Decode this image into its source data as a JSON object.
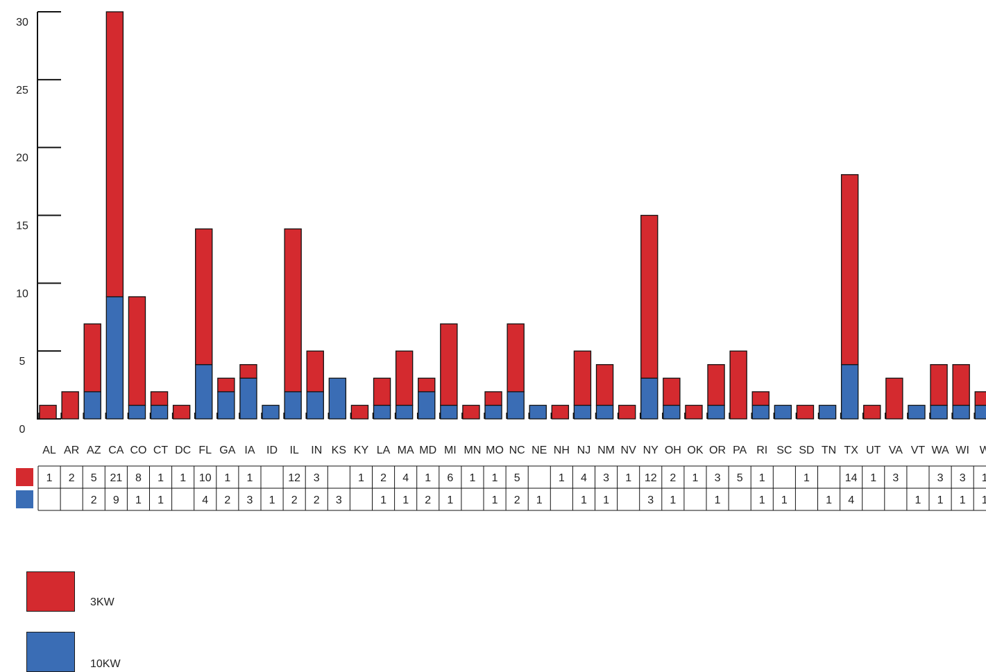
{
  "colors": {
    "red": "#d42a2f",
    "blue": "#3a6db5",
    "axis": "#111111"
  },
  "chart_data": {
    "type": "bar",
    "stacked": true,
    "categories": [
      "AL",
      "AR",
      "AZ",
      "CA",
      "CO",
      "CT",
      "DC",
      "FL",
      "GA",
      "IA",
      "ID",
      "IL",
      "IN",
      "KS",
      "KY",
      "LA",
      "MA",
      "MD",
      "MI",
      "MN",
      "MO",
      "NC",
      "NE",
      "NH",
      "NJ",
      "NM",
      "NV",
      "NY",
      "OH",
      "OK",
      "OR",
      "PA",
      "RI",
      "SC",
      "SD",
      "TN",
      "TX",
      "UT",
      "VA",
      "VT",
      "WA",
      "WI",
      "W"
    ],
    "series": [
      {
        "name": "10KW",
        "color": "#3a6db5",
        "values": [
          null,
          null,
          2,
          9,
          1,
          1,
          null,
          4,
          2,
          3,
          1,
          2,
          2,
          3,
          null,
          1,
          1,
          2,
          1,
          null,
          1,
          2,
          1,
          null,
          1,
          1,
          null,
          3,
          1,
          null,
          1,
          null,
          1,
          1,
          null,
          1,
          4,
          null,
          null,
          1,
          1,
          1,
          1
        ]
      },
      {
        "name": "3KW",
        "color": "#d42a2f",
        "values": [
          1,
          2,
          5,
          21,
          8,
          1,
          1,
          10,
          1,
          1,
          null,
          12,
          3,
          null,
          1,
          2,
          4,
          1,
          6,
          1,
          1,
          5,
          null,
          1,
          4,
          3,
          1,
          12,
          2,
          1,
          3,
          5,
          1,
          null,
          1,
          null,
          14,
          1,
          3,
          null,
          3,
          3,
          1
        ]
      }
    ],
    "ylim": [
      0,
      30
    ],
    "yticks": [
      0,
      5,
      10,
      15,
      20,
      25,
      30
    ],
    "table_rows": [
      "3KW",
      "10KW"
    ],
    "legend_position": "bottom-left",
    "grid": false,
    "title": "",
    "xlabel": "",
    "ylabel": ""
  },
  "legend": [
    {
      "label": "3KW",
      "color": "#d42a2f"
    },
    {
      "label": "10KW",
      "color": "#3a6db5"
    }
  ]
}
